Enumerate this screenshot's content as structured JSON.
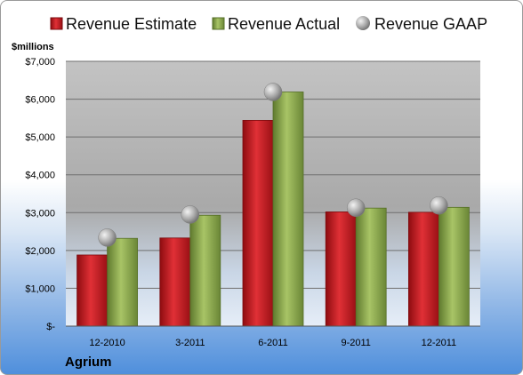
{
  "chart_data": {
    "type": "bar",
    "unit_label": "$millions",
    "company": "Agrium",
    "categories": [
      "12-2010",
      "3-2011",
      "6-2011",
      "9-2011",
      "12-2011"
    ],
    "y_ticks": [
      "$-",
      "$1,000",
      "$2,000",
      "$3,000",
      "$4,000",
      "$5,000",
      "$6,000",
      "$7,000"
    ],
    "ylim": [
      0,
      7000
    ],
    "grid": true,
    "legend_position": "top",
    "series": [
      {
        "name": "Revenue Estimate",
        "marker": "bar",
        "color": "#c8151b",
        "values": [
          1880,
          2330,
          5440,
          3020,
          3010
        ]
      },
      {
        "name": "Revenue Actual",
        "marker": "bar",
        "color": "#8fac52",
        "values": [
          2320,
          2930,
          6190,
          3120,
          3140
        ]
      },
      {
        "name": "Revenue GAAP",
        "marker": "point",
        "color": "#a6a6a6",
        "values": [
          2340,
          2950,
          6190,
          3130,
          3190
        ]
      }
    ]
  }
}
